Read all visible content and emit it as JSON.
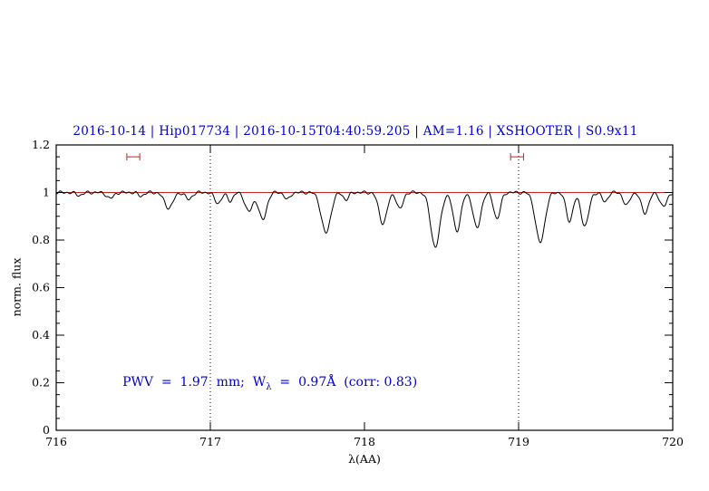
{
  "header": {
    "title": "2016-10-14 | Hip017734 | 2016-10-15T04:40:59.205 | AM=1.16 | XSHOOTER | S0.9x11",
    "title_color": "#0000cc"
  },
  "chart_data": {
    "type": "line",
    "title": "2016-10-14 | Hip017734 | 2016-10-15T04:40:59.205 | AM=1.16 | XSHOOTER | S0.9x11",
    "xlabel": "λ(AA)",
    "ylabel": "norm. flux",
    "xlim": [
      716,
      720
    ],
    "ylim": [
      0,
      1.2
    ],
    "x_ticks": [
      716,
      717,
      718,
      719,
      720
    ],
    "x_tick_labels": [
      "716",
      "717",
      "718",
      "719",
      "720"
    ],
    "x_minor_step": 0.1,
    "y_ticks": [
      0,
      0.2,
      0.4,
      0.6,
      0.8,
      1,
      1.2
    ],
    "y_tick_labels": [
      "0",
      "0.2",
      "0.4",
      "0.6",
      "0.8",
      "1",
      "1.2"
    ],
    "y_minor_step": 0.05,
    "grid": false,
    "legend": null,
    "series_color": "#000000",
    "continuum": {
      "y": 1.0,
      "color": "#cc2222"
    },
    "vlines": [
      {
        "x": 717,
        "style": "dotted",
        "color": "#000000"
      },
      {
        "x": 719,
        "style": "dotted",
        "color": "#000000"
      }
    ],
    "range_markers": [
      {
        "x": 716.5,
        "half_width": 0.042,
        "y": 1.15,
        "color": "#cc2222"
      },
      {
        "x": 718.99,
        "half_width": 0.042,
        "y": 1.15,
        "color": "#cc2222"
      }
    ],
    "absorption_lines": [
      [
        716.15,
        0.012,
        0.02
      ],
      [
        716.35,
        0.025,
        0.022
      ],
      [
        716.55,
        0.015,
        0.018
      ],
      [
        716.73,
        0.065,
        0.028
      ],
      [
        716.86,
        0.03,
        0.02
      ],
      [
        717.05,
        0.045,
        0.022
      ],
      [
        717.13,
        0.035,
        0.018
      ],
      [
        717.25,
        0.08,
        0.025
      ],
      [
        717.34,
        0.115,
        0.025
      ],
      [
        717.5,
        0.03,
        0.018
      ],
      [
        717.75,
        0.17,
        0.03
      ],
      [
        717.88,
        0.03,
        0.018
      ],
      [
        718.12,
        0.13,
        0.026
      ],
      [
        718.23,
        0.07,
        0.02
      ],
      [
        718.46,
        0.23,
        0.03
      ],
      [
        718.6,
        0.16,
        0.025
      ],
      [
        718.73,
        0.15,
        0.025
      ],
      [
        718.86,
        0.11,
        0.022
      ],
      [
        719.14,
        0.21,
        0.03
      ],
      [
        719.33,
        0.12,
        0.022
      ],
      [
        719.43,
        0.14,
        0.025
      ],
      [
        719.56,
        0.04,
        0.018
      ],
      [
        719.7,
        0.055,
        0.02
      ],
      [
        719.82,
        0.085,
        0.024
      ],
      [
        719.94,
        0.06,
        0.022
      ]
    ],
    "noise_amplitudes": [
      0.004,
      0.003
    ],
    "annotation": {
      "full": "PWV = 1.97 mm; W_λ = 0.97Å (corr: 0.83)",
      "prefix": "PWV  =  1.97  mm;  W",
      "sub": "λ",
      "suffix": "  =  0.97Å  (corr: 0.83)",
      "x": 716.43,
      "y": 0.2,
      "color": "#0000cc"
    }
  }
}
